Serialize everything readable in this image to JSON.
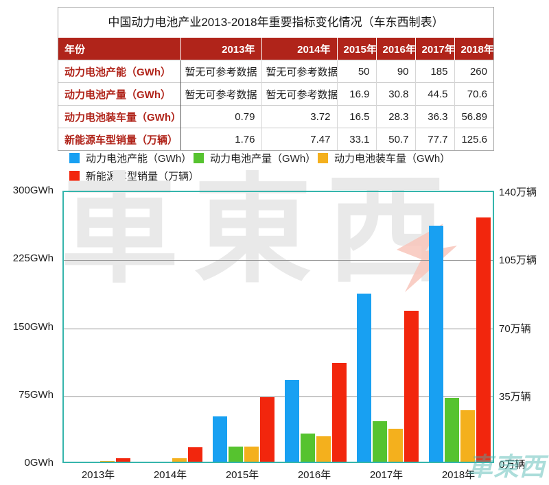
{
  "table": {
    "title": "中国动力电池产业2013-2018年重要指标变化情况（车东西制表）",
    "header": [
      "年份",
      "2013年",
      "2014年",
      "2015年",
      "2016年",
      "2017年",
      "2018年"
    ],
    "rows": [
      {
        "label": "动力电池产能（GWh）",
        "values": [
          "暂无可参考数据",
          "暂无可参考数据",
          "50",
          "90",
          "185",
          "260"
        ]
      },
      {
        "label": "动力电池产量（GWh）",
        "values": [
          "暂无可参考数据",
          "暂无可参考数据",
          "16.9",
          "30.8",
          "44.5",
          "70.6"
        ]
      },
      {
        "label": "动力电池装车量（GWh）",
        "values": [
          "0.79",
          "3.72",
          "16.5",
          "28.3",
          "36.3",
          "56.89"
        ]
      },
      {
        "label": "新能源车型销量（万辆）",
        "values": [
          "1.76",
          "7.47",
          "33.1",
          "50.7",
          "77.7",
          "125.6"
        ]
      }
    ]
  },
  "chart_data": {
    "type": "bar",
    "categories": [
      "2013年",
      "2014年",
      "2015年",
      "2016年",
      "2017年",
      "2018年"
    ],
    "series": [
      {
        "name": "动力电池产能（GWh）",
        "axis": "left",
        "color": "#18a0f2",
        "values": [
          null,
          null,
          50,
          90,
          185,
          260
        ]
      },
      {
        "name": "动力电池产量（GWh）",
        "axis": "left",
        "color": "#56c32f",
        "values": [
          null,
          null,
          16.9,
          30.8,
          44.5,
          70.6
        ]
      },
      {
        "name": "动力电池装车量（GWh）",
        "axis": "left",
        "color": "#f4b01d",
        "values": [
          0.79,
          3.72,
          16.5,
          28.3,
          36.3,
          56.89
        ]
      },
      {
        "name": "新能源车型销量（万辆）",
        "axis": "right",
        "color": "#f2260d",
        "values": [
          1.76,
          7.47,
          33.1,
          50.7,
          77.7,
          125.6
        ]
      }
    ],
    "left_axis": {
      "label_unit": "GWh",
      "ticks": [
        "0GWh",
        "75GWh",
        "150GWh",
        "225GWh",
        "300GWh"
      ],
      "min": 0,
      "max": 300
    },
    "right_axis": {
      "label_unit": "万辆",
      "ticks": [
        "0万辆",
        "35万辆",
        "70万辆",
        "105万辆",
        "140万辆"
      ],
      "min": 0,
      "max": 140
    },
    "grid": true,
    "legend_position": "top",
    "title": ""
  },
  "watermarks": {
    "center": "車東西",
    "corner": "車東西"
  },
  "colors": {
    "header_bg": "#b0241a",
    "label_red": "#b0241a",
    "plot_border_teal": "#35b5ac",
    "gridline": "#8f8f8f",
    "watermark_gray": "#e9e9e9",
    "watermark_teal": "#46b4ad",
    "watermark_accent_pink": "#f8c5bb"
  }
}
